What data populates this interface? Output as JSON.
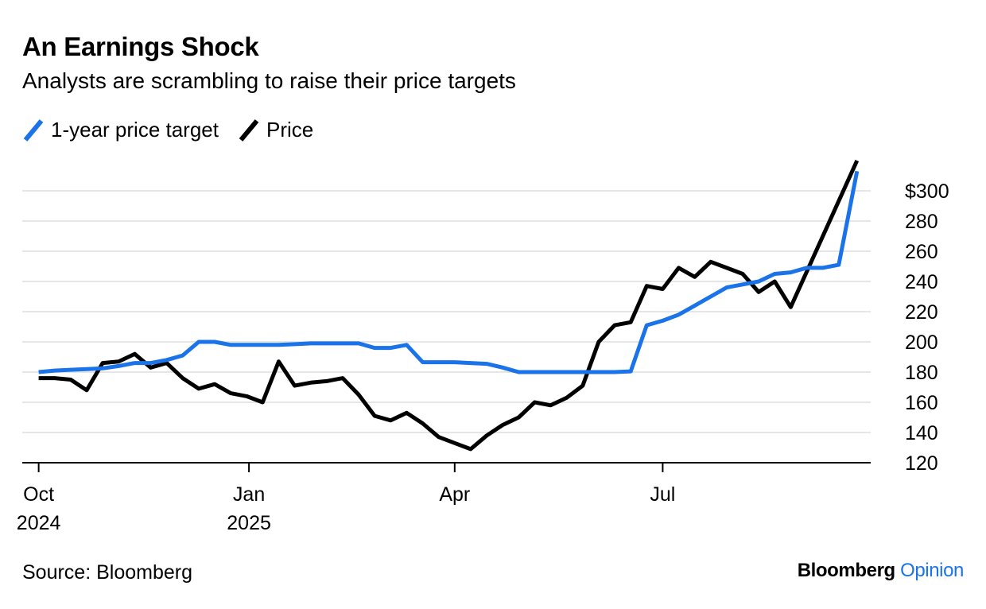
{
  "title": "An Earnings Shock",
  "subtitle": "Analysts are scrambling to raise their price targets",
  "source": "Source: Bloomberg",
  "brand": {
    "name": "Bloomberg",
    "suffix": "Opinion"
  },
  "colors": {
    "target": "#1a73e8",
    "price": "#000000",
    "grid": "#e6e6e6",
    "axis": "#000000"
  },
  "chart_data": {
    "type": "line",
    "title": "An Earnings Shock",
    "subtitle": "Analysts are scrambling to raise their price targets",
    "xlabel": "",
    "ylabel": "",
    "y_range": [
      120,
      320
    ],
    "y_ticks": [
      120,
      140,
      160,
      180,
      200,
      220,
      240,
      260,
      280,
      300
    ],
    "y_tick_labels": [
      "120",
      "140",
      "160",
      "180",
      "200",
      "220",
      "240",
      "260",
      "280",
      "$300"
    ],
    "x_ticks": [
      {
        "date": "2024-10-01",
        "line1": "Oct",
        "line2": "2024"
      },
      {
        "date": "2025-01-01",
        "line1": "Jan",
        "line2": "2025"
      },
      {
        "date": "2025-04-01",
        "line1": "Apr",
        "line2": ""
      },
      {
        "date": "2025-07-01",
        "line1": "Jul",
        "line2": ""
      }
    ],
    "x_range": [
      "2024-09-28",
      "2025-09-30"
    ],
    "grid": true,
    "legend_position": "top-left",
    "series": [
      {
        "name": "1-year price target",
        "color": "#1a73e8",
        "points": [
          [
            "2024-10-01",
            180
          ],
          [
            "2024-10-08",
            181
          ],
          [
            "2024-10-15",
            181.5
          ],
          [
            "2024-10-22",
            182
          ],
          [
            "2024-10-29",
            182.5
          ],
          [
            "2024-11-05",
            184
          ],
          [
            "2024-11-12",
            186
          ],
          [
            "2024-11-19",
            186
          ],
          [
            "2024-11-26",
            188
          ],
          [
            "2024-12-03",
            191
          ],
          [
            "2024-12-10",
            200
          ],
          [
            "2024-12-17",
            200
          ],
          [
            "2024-12-24",
            198
          ],
          [
            "2024-12-31",
            198
          ],
          [
            "2025-01-07",
            198
          ],
          [
            "2025-01-14",
            198
          ],
          [
            "2025-01-21",
            198.5
          ],
          [
            "2025-01-28",
            199
          ],
          [
            "2025-02-04",
            199
          ],
          [
            "2025-02-11",
            199
          ],
          [
            "2025-02-18",
            199
          ],
          [
            "2025-02-25",
            196
          ],
          [
            "2025-03-04",
            196
          ],
          [
            "2025-03-11",
            198
          ],
          [
            "2025-03-18",
            186.5
          ],
          [
            "2025-03-25",
            186.5
          ],
          [
            "2025-04-01",
            186.5
          ],
          [
            "2025-04-08",
            186
          ],
          [
            "2025-04-15",
            185.5
          ],
          [
            "2025-04-22",
            183
          ],
          [
            "2025-04-29",
            180
          ],
          [
            "2025-05-06",
            180
          ],
          [
            "2025-05-13",
            180
          ],
          [
            "2025-05-20",
            180
          ],
          [
            "2025-05-27",
            180
          ],
          [
            "2025-06-03",
            180
          ],
          [
            "2025-06-10",
            180
          ],
          [
            "2025-06-17",
            180.5
          ],
          [
            "2025-06-24",
            211
          ],
          [
            "2025-07-01",
            214
          ],
          [
            "2025-07-08",
            218
          ],
          [
            "2025-07-15",
            224
          ],
          [
            "2025-07-22",
            230
          ],
          [
            "2025-07-29",
            236
          ],
          [
            "2025-08-05",
            238
          ],
          [
            "2025-08-12",
            240
          ],
          [
            "2025-08-19",
            245
          ],
          [
            "2025-08-26",
            246
          ],
          [
            "2025-09-02",
            249
          ],
          [
            "2025-09-09",
            249
          ],
          [
            "2025-09-16",
            251
          ],
          [
            "2025-09-24",
            313
          ]
        ]
      },
      {
        "name": "Price",
        "color": "#000000",
        "points": [
          [
            "2024-10-01",
            176
          ],
          [
            "2024-10-08",
            176
          ],
          [
            "2024-10-15",
            175
          ],
          [
            "2024-10-22",
            168
          ],
          [
            "2024-10-29",
            186
          ],
          [
            "2024-11-05",
            187
          ],
          [
            "2024-11-12",
            192
          ],
          [
            "2024-11-19",
            183
          ],
          [
            "2024-11-26",
            186
          ],
          [
            "2024-12-03",
            176
          ],
          [
            "2024-12-10",
            169
          ],
          [
            "2024-12-17",
            172
          ],
          [
            "2024-12-24",
            166
          ],
          [
            "2024-12-31",
            164
          ],
          [
            "2025-01-07",
            160
          ],
          [
            "2025-01-14",
            187
          ],
          [
            "2025-01-21",
            171
          ],
          [
            "2025-01-28",
            173
          ],
          [
            "2025-02-04",
            174
          ],
          [
            "2025-02-11",
            176
          ],
          [
            "2025-02-18",
            165
          ],
          [
            "2025-02-25",
            151
          ],
          [
            "2025-03-04",
            148
          ],
          [
            "2025-03-11",
            153
          ],
          [
            "2025-03-18",
            146
          ],
          [
            "2025-03-25",
            137
          ],
          [
            "2025-04-01",
            133
          ],
          [
            "2025-04-08",
            129
          ],
          [
            "2025-04-15",
            138
          ],
          [
            "2025-04-22",
            145
          ],
          [
            "2025-04-29",
            150
          ],
          [
            "2025-05-06",
            160
          ],
          [
            "2025-05-13",
            158
          ],
          [
            "2025-05-20",
            163
          ],
          [
            "2025-05-27",
            171
          ],
          [
            "2025-06-03",
            200
          ],
          [
            "2025-06-10",
            211
          ],
          [
            "2025-06-17",
            213
          ],
          [
            "2025-06-24",
            237
          ],
          [
            "2025-07-01",
            235
          ],
          [
            "2025-07-08",
            249
          ],
          [
            "2025-07-15",
            243
          ],
          [
            "2025-07-22",
            253
          ],
          [
            "2025-07-29",
            249
          ],
          [
            "2025-08-05",
            245
          ],
          [
            "2025-08-12",
            233
          ],
          [
            "2025-08-19",
            240
          ],
          [
            "2025-08-26",
            223
          ],
          [
            "2025-09-24",
            320
          ]
        ]
      }
    ]
  }
}
